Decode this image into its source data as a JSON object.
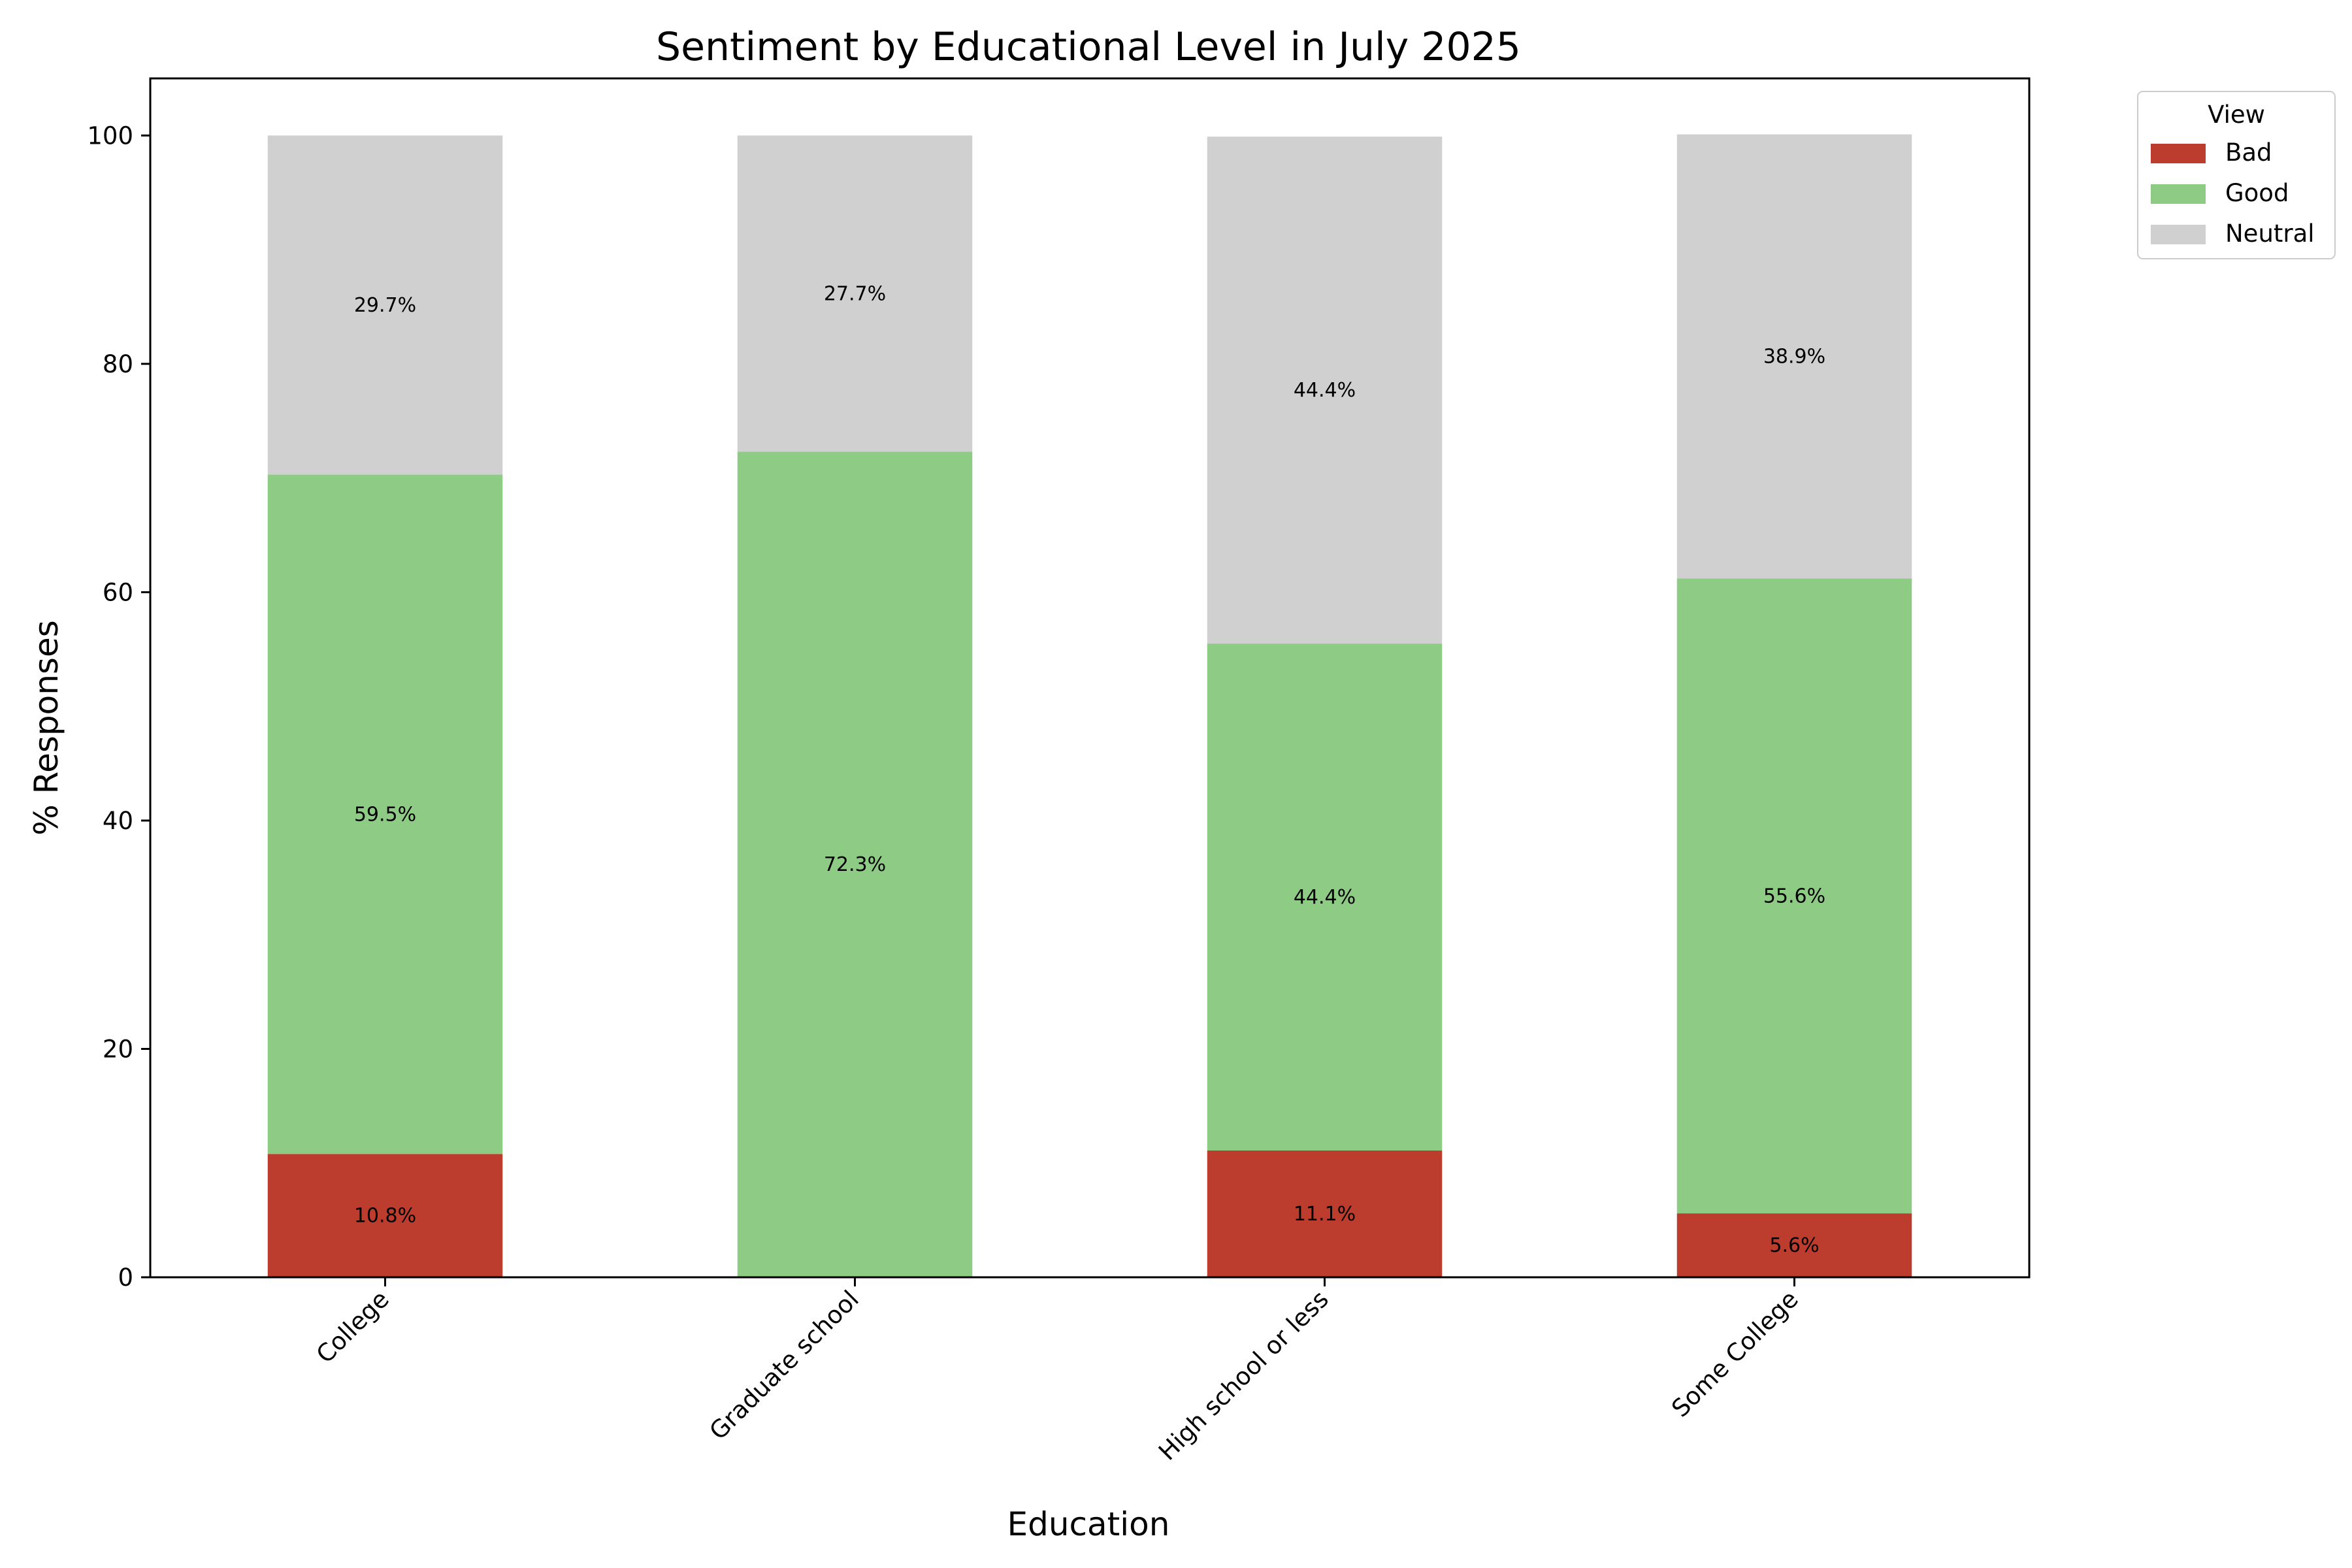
{
  "chart_data": {
    "type": "bar",
    "stacked": true,
    "title": "Sentiment by Educational Level in July 2025",
    "xlabel": "Education",
    "ylabel": "% Responses",
    "ylim": [
      0,
      105
    ],
    "yticks": [
      0,
      20,
      40,
      60,
      80,
      100
    ],
    "grid": false,
    "categories": [
      "College",
      "Graduate school",
      "High school or less",
      "Some College"
    ],
    "series": [
      {
        "name": "Bad",
        "color": "#bc3c2d",
        "values": [
          10.8,
          0,
          11.1,
          5.6
        ],
        "labels": [
          "10.8%",
          "",
          "11.1%",
          "5.6%"
        ]
      },
      {
        "name": "Good",
        "color": "#8ecc86",
        "values": [
          59.5,
          72.3,
          44.4,
          55.6
        ],
        "labels": [
          "59.5%",
          "72.3%",
          "44.4%",
          "55.6%"
        ]
      },
      {
        "name": "Neutral",
        "color": "#d1d0d1",
        "values": [
          29.7,
          27.7,
          44.4,
          38.9
        ],
        "labels": [
          "29.7%",
          "27.7%",
          "44.4%",
          "38.9%"
        ]
      }
    ],
    "legend": {
      "title": "View",
      "placement": "outside-top-right"
    }
  }
}
